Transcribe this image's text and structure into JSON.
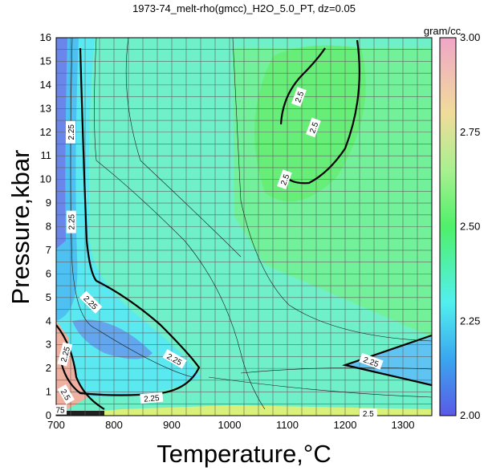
{
  "chart_data": {
    "type": "heatmap",
    "title": "1973-74_melt-rho(gmcc)_H2O_5.0_PT, dz=0.05",
    "xlabel": "Temperature,°C",
    "ylabel": "Pressure,kbar",
    "xlim": [
      700,
      1350
    ],
    "ylim": [
      0,
      16
    ],
    "x_ticks": [
      "700",
      "800",
      "900",
      "1000",
      "1100",
      "1200",
      "1300"
    ],
    "y_ticks": [
      "0",
      "1",
      "2",
      "3",
      "4",
      "5",
      "6",
      "7",
      "8",
      "9",
      "10",
      "11",
      "12",
      "13",
      "14",
      "15",
      "16"
    ],
    "grid": true,
    "colorbar": {
      "unit": "gram/cc",
      "range": [
        2.0,
        3.0
      ],
      "ticks": [
        "2.00",
        "2.25",
        "2.50",
        "2.75",
        "3.00"
      ],
      "colors": [
        "#5a5ae6",
        "#3aa6f0",
        "#52f0ee",
        "#4ff06a",
        "#a9f090",
        "#f0dc9a",
        "#f0a6c8"
      ]
    },
    "contour_labels": [
      "2.25",
      "2.25",
      "2.25",
      "2.25",
      "2.25",
      "2.25",
      "2.5",
      "2.5",
      "2.5",
      "2.5",
      "2.5",
      "2.25",
      "75"
    ]
  }
}
